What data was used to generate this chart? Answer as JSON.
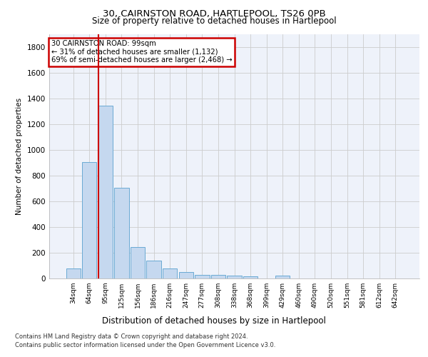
{
  "title1": "30, CAIRNSTON ROAD, HARTLEPOOL, TS26 0PB",
  "title2": "Size of property relative to detached houses in Hartlepool",
  "xlabel": "Distribution of detached houses by size in Hartlepool",
  "ylabel": "Number of detached properties",
  "categories": [
    "34sqm",
    "64sqm",
    "95sqm",
    "125sqm",
    "156sqm",
    "186sqm",
    "216sqm",
    "247sqm",
    "277sqm",
    "308sqm",
    "338sqm",
    "368sqm",
    "399sqm",
    "429sqm",
    "460sqm",
    "490sqm",
    "520sqm",
    "551sqm",
    "581sqm",
    "612sqm",
    "642sqm"
  ],
  "values": [
    80,
    905,
    1340,
    705,
    245,
    140,
    80,
    50,
    30,
    25,
    22,
    15,
    0,
    20,
    0,
    0,
    0,
    0,
    0,
    0,
    0
  ],
  "bar_color": "#c5d8ef",
  "bar_edgecolor": "#6aaad4",
  "vline_x": 1.575,
  "vline_color": "#cc0000",
  "annotation_text": "30 CAIRNSTON ROAD: 99sqm\n← 31% of detached houses are smaller (1,132)\n69% of semi-detached houses are larger (2,468) →",
  "annotation_box_color": "#cc0000",
  "ylim": [
    0,
    1900
  ],
  "yticks": [
    0,
    200,
    400,
    600,
    800,
    1000,
    1200,
    1400,
    1600,
    1800
  ],
  "grid_color": "#cccccc",
  "bg_color": "#eef2fa",
  "footer1": "Contains HM Land Registry data © Crown copyright and database right 2024.",
  "footer2": "Contains public sector information licensed under the Open Government Licence v3.0."
}
